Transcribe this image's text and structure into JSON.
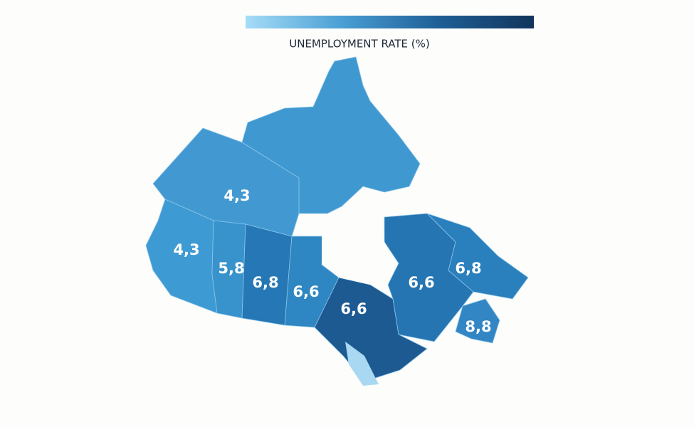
{
  "legend": {
    "title": "UNEMPLOYMENT RATE (%)",
    "colors": [
      "#a6dcf7",
      "#4a9fd4",
      "#1f5f97",
      "#12355c"
    ]
  },
  "regions": [
    {
      "label": "4,3",
      "color": "#4299d1"
    },
    {
      "label": "4,3",
      "color": "#3e9ad3"
    },
    {
      "label": "5,8",
      "color": "#3892cc"
    },
    {
      "label": "6,8",
      "color": "#2577b5"
    },
    {
      "label": "6,6",
      "color": "#2e86c2"
    },
    {
      "label": "6,6",
      "color": "#1d5a91"
    },
    {
      "label": "6,6",
      "color": "#2675b3"
    },
    {
      "label": "6,8",
      "color": "#2a7fbd"
    },
    {
      "label": "8,8",
      "color": "#3286c4"
    },
    {
      "color": "#3f98d0"
    }
  ],
  "lakes": {
    "color": "#a9d9f2"
  }
}
